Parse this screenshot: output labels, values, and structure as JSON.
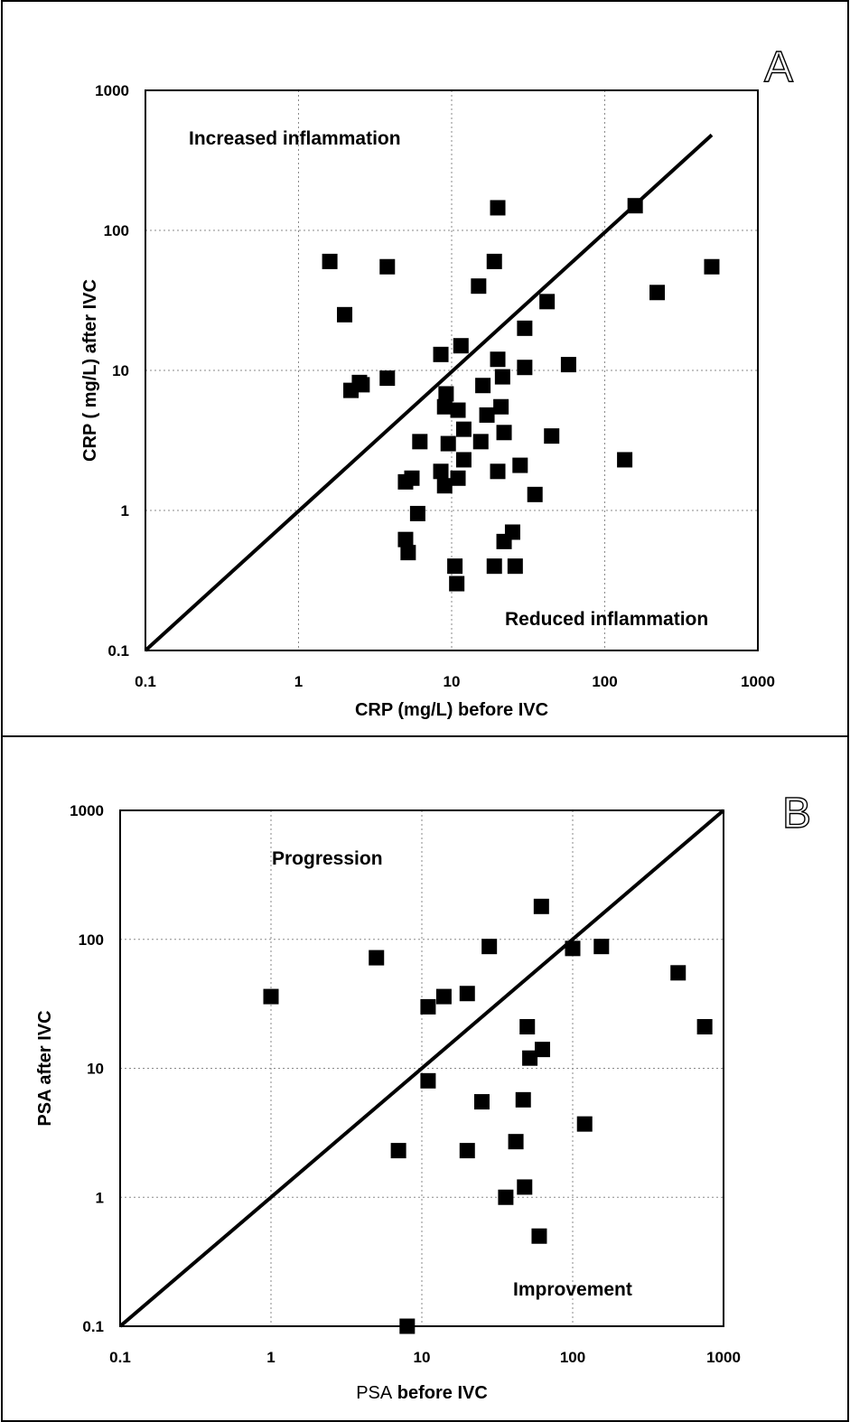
{
  "chart_data": [
    {
      "type": "scatter",
      "panel_letter": "A",
      "xlabel": "CRP  (mg/L) before IVC",
      "ylabel": "CRP ( mg/L) after IVC",
      "xscale": "log",
      "yscale": "log",
      "xlim": [
        0.1,
        1000
      ],
      "ylim": [
        0.1,
        1000
      ],
      "tick_labels": [
        "0.1",
        "1",
        "10",
        "100",
        "1000"
      ],
      "grid": true,
      "annotations": [
        "Increased inflammation",
        "Reduced inflammation"
      ],
      "identity_line": [
        [
          0.1,
          0.1
        ],
        [
          500,
          480
        ]
      ],
      "points": [
        [
          1.6,
          60
        ],
        [
          2.0,
          25
        ],
        [
          3.8,
          55
        ],
        [
          2.2,
          7.2
        ],
        [
          2.5,
          8.2
        ],
        [
          2.6,
          7.9
        ],
        [
          3.8,
          8.8
        ],
        [
          5.0,
          1.6
        ],
        [
          5.5,
          1.7
        ],
        [
          6.0,
          0.95
        ],
        [
          6.2,
          3.1
        ],
        [
          5.0,
          0.62
        ],
        [
          5.2,
          0.5
        ],
        [
          8.5,
          13
        ],
        [
          8.5,
          1.9
        ],
        [
          9.0,
          1.5
        ],
        [
          9.2,
          6.8
        ],
        [
          9.0,
          5.5
        ],
        [
          9.5,
          3.0
        ],
        [
          10.5,
          0.4
        ],
        [
          10.8,
          0.3
        ],
        [
          11,
          1.7
        ],
        [
          11,
          5.2
        ],
        [
          11.5,
          15
        ],
        [
          12,
          2.3
        ],
        [
          12,
          3.8
        ],
        [
          15,
          40
        ],
        [
          15.5,
          3.1
        ],
        [
          16,
          7.8
        ],
        [
          17,
          4.8
        ],
        [
          19,
          60
        ],
        [
          20,
          145
        ],
        [
          20,
          12
        ],
        [
          20,
          1.9
        ],
        [
          19,
          0.4
        ],
        [
          21,
          5.5
        ],
        [
          21.5,
          9.0
        ],
        [
          22,
          0.6
        ],
        [
          22,
          3.6
        ],
        [
          25,
          0.7
        ],
        [
          26,
          0.4
        ],
        [
          28,
          2.1
        ],
        [
          30,
          20
        ],
        [
          30,
          10.5
        ],
        [
          35,
          1.3
        ],
        [
          42,
          31
        ],
        [
          45,
          3.4
        ],
        [
          58,
          11
        ],
        [
          135,
          2.3
        ],
        [
          158,
          150
        ],
        [
          220,
          36
        ],
        [
          500,
          55
        ]
      ]
    },
    {
      "type": "scatter",
      "panel_letter": "B",
      "xlabel_parts": [
        "PSA",
        "before IVC"
      ],
      "ylabel": "PSA after IVC",
      "xscale": "log",
      "yscale": "log",
      "xlim": [
        0.1,
        1000
      ],
      "ylim": [
        0.1,
        1000
      ],
      "tick_labels": [
        "0.1",
        "1",
        "10",
        "100",
        "1000"
      ],
      "grid": true,
      "annotations": [
        "Progression",
        "Improvement"
      ],
      "identity_line": [
        [
          0.1,
          0.1
        ],
        [
          1000,
          1000
        ]
      ],
      "points": [
        [
          1.0,
          36
        ],
        [
          5.0,
          72
        ],
        [
          7.0,
          2.3
        ],
        [
          8.0,
          0.1
        ],
        [
          11,
          30
        ],
        [
          11,
          8
        ],
        [
          14,
          36
        ],
        [
          20,
          38
        ],
        [
          20,
          2.3
        ],
        [
          25,
          5.5
        ],
        [
          28,
          88
        ],
        [
          36,
          1.0
        ],
        [
          42,
          2.7
        ],
        [
          47,
          5.7
        ],
        [
          48,
          1.2
        ],
        [
          50,
          21
        ],
        [
          52,
          12
        ],
        [
          60,
          0.5
        ],
        [
          62,
          180
        ],
        [
          63,
          14
        ],
        [
          100,
          85
        ],
        [
          120,
          3.7
        ],
        [
          155,
          88
        ],
        [
          500,
          55
        ],
        [
          750,
          21
        ]
      ]
    }
  ]
}
